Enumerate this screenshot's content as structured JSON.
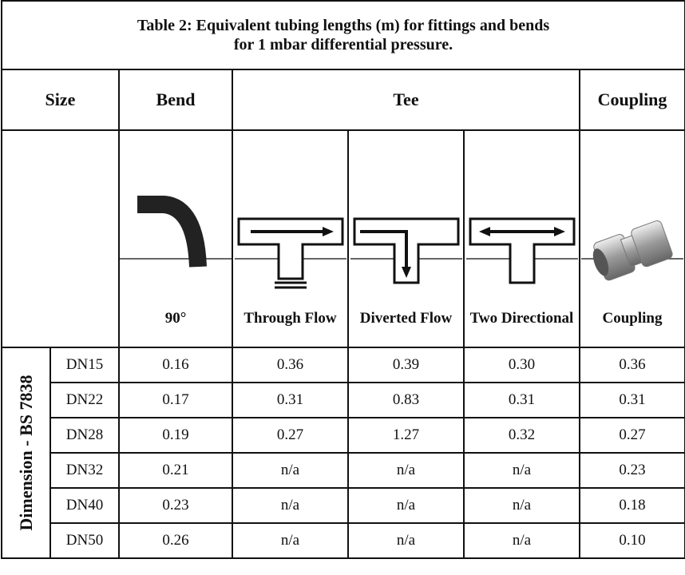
{
  "title": {
    "line1": "Table 2:   Equivalent tubing lengths (m) for fittings and bends",
    "line2": "for 1 mbar differential pressure."
  },
  "header": {
    "size": "Size",
    "bend": "Bend",
    "tee": "Tee",
    "coupling": "Coupling"
  },
  "fittings": [
    "90°",
    "Through Flow",
    "Diverted Flow",
    "Two Directional",
    "Coupling"
  ],
  "dimension_label": "Dimension - BS 7838",
  "rows": [
    [
      "DN15",
      "0.16",
      "0.36",
      "0.39",
      "0.30",
      "0.36"
    ],
    [
      "DN22",
      "0.17",
      "0.31",
      "0.83",
      "0.31",
      "0.31"
    ],
    [
      "DN28",
      "0.19",
      "0.27",
      "1.27",
      "0.32",
      "0.27"
    ],
    [
      "DN32",
      "0.21",
      "n/a",
      "n/a",
      "n/a",
      "0.23"
    ],
    [
      "DN40",
      "0.23",
      "n/a",
      "n/a",
      "n/a",
      "0.18"
    ],
    [
      "DN50",
      "0.26",
      "n/a",
      "n/a",
      "n/a",
      "0.10"
    ]
  ]
}
